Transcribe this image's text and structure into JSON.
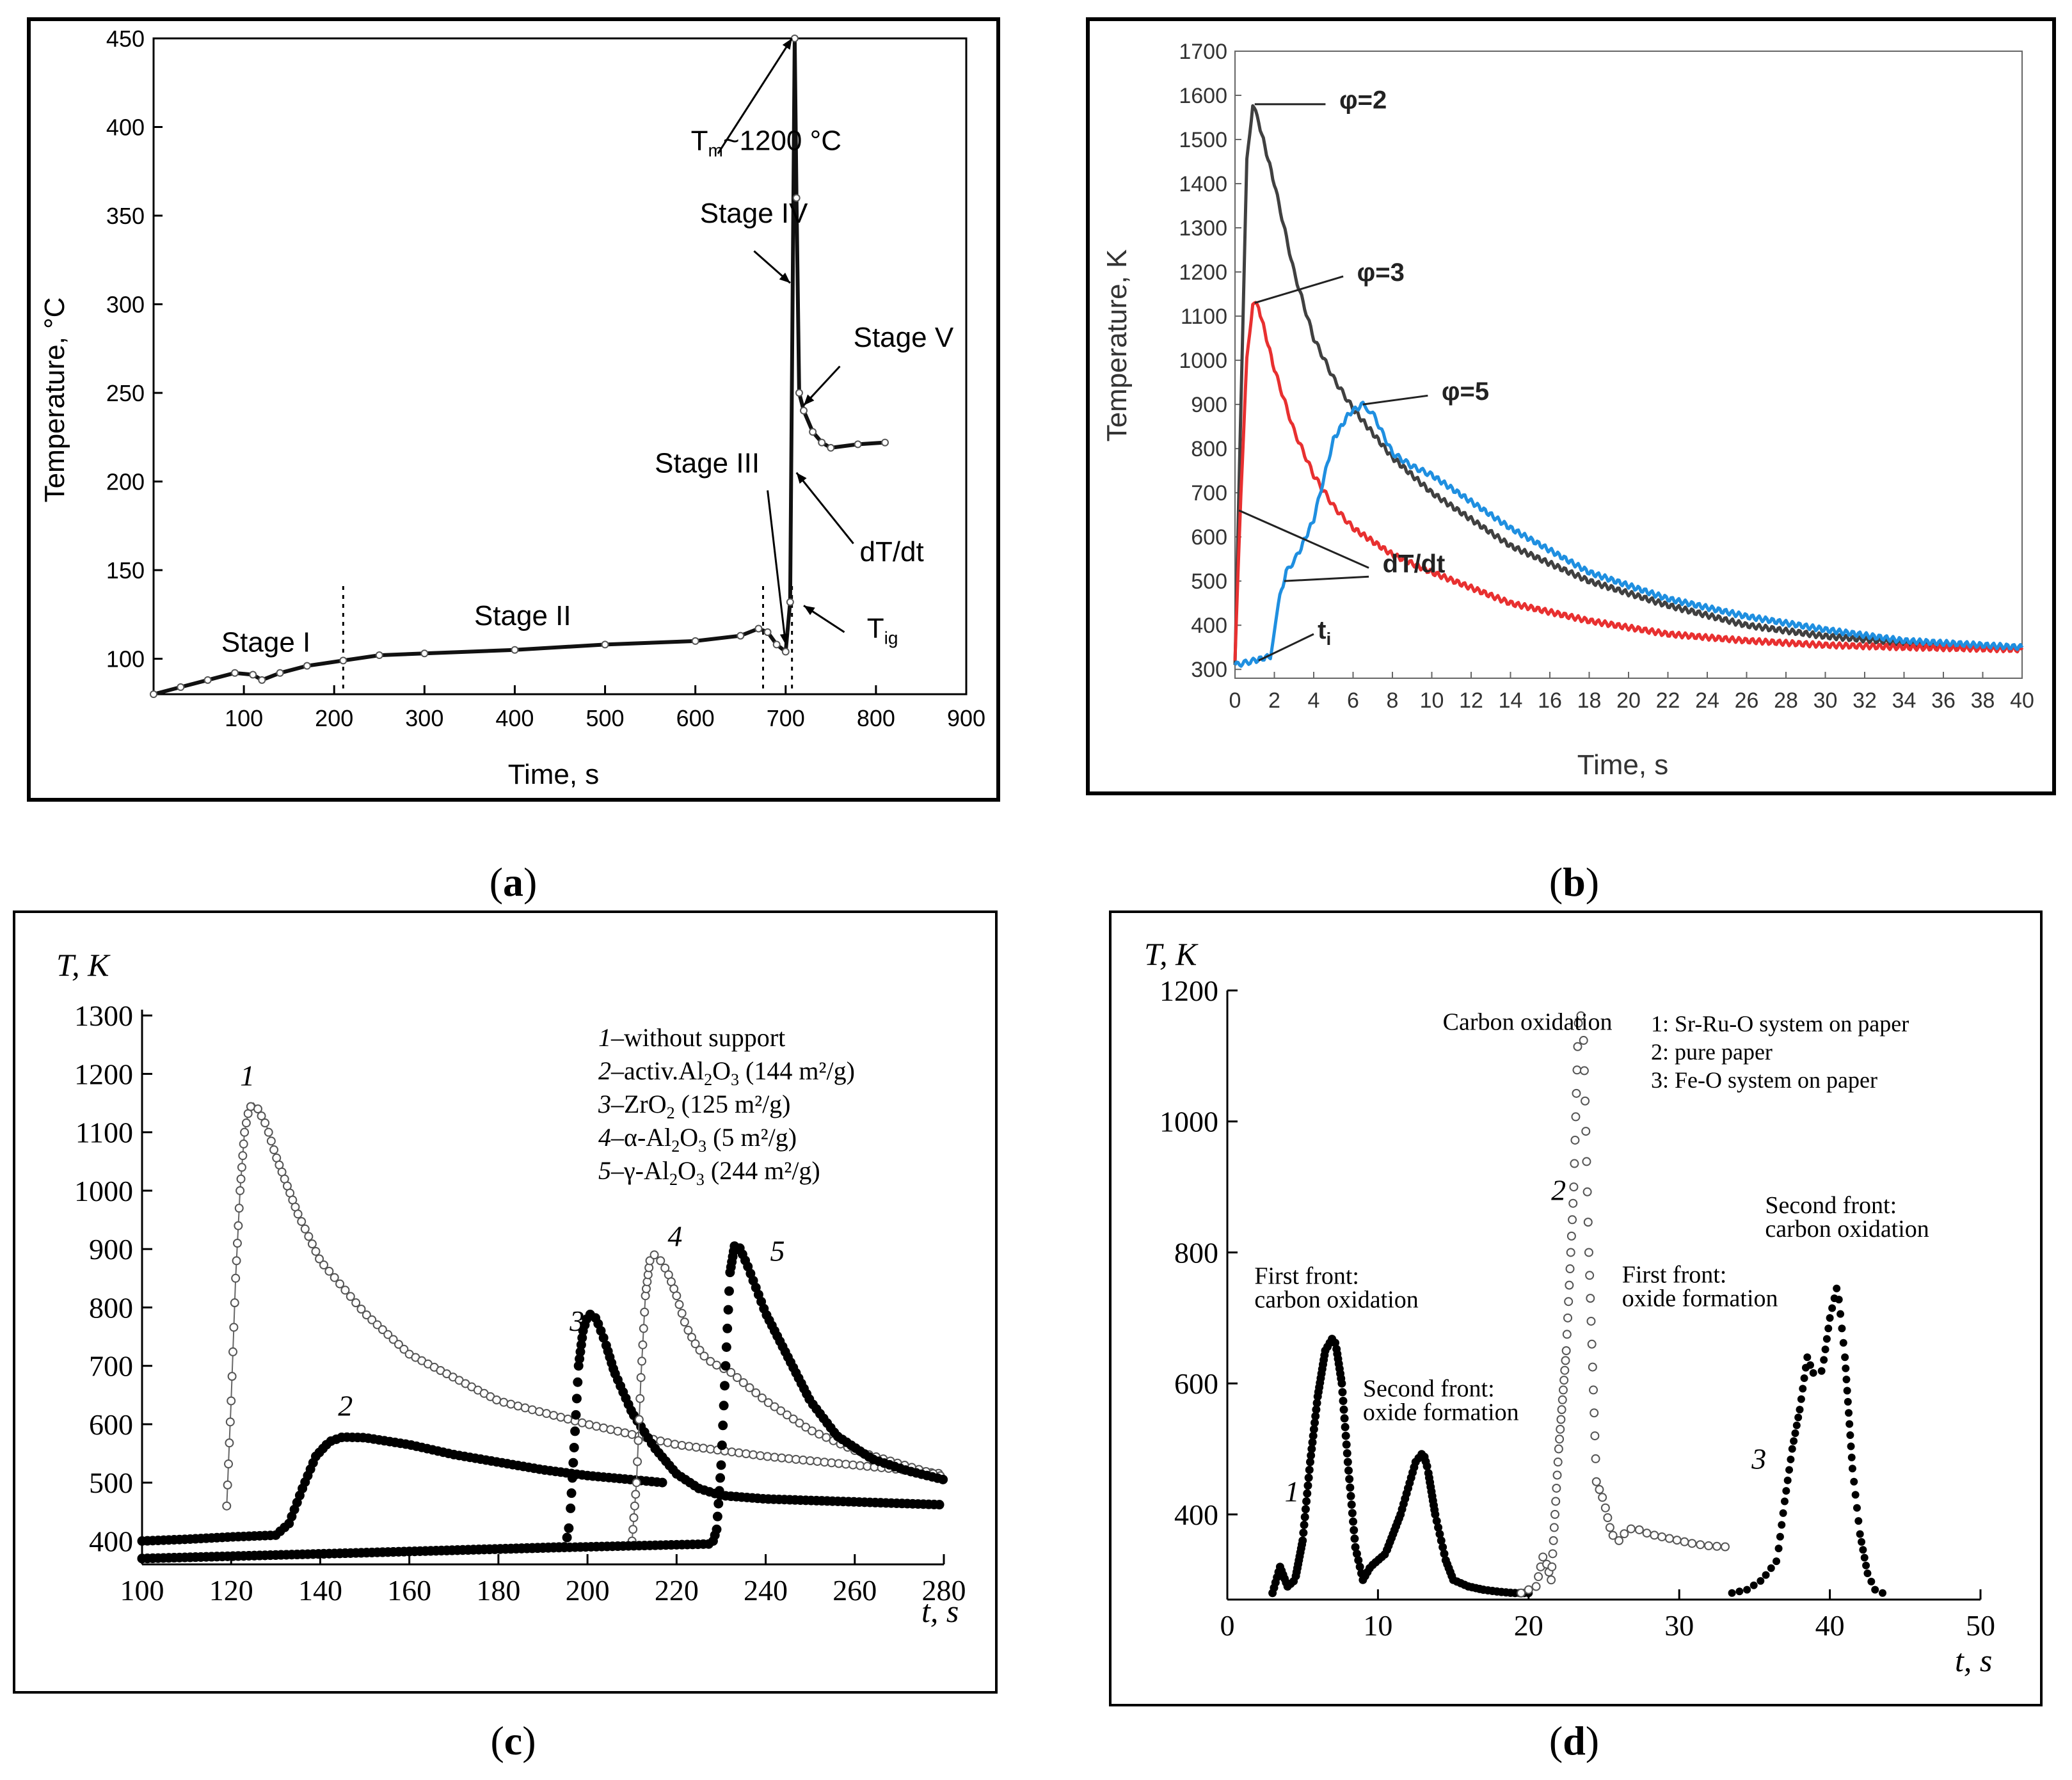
{
  "panels": {
    "a": {
      "caption": "a",
      "chart_data": {
        "type": "line",
        "xlabel": "Time, s",
        "ylabel": "Temperature, °C",
        "xlim": [
          0,
          900
        ],
        "ylim": [
          80,
          450
        ],
        "xticks": [
          100,
          200,
          300,
          400,
          500,
          600,
          700,
          800,
          900
        ],
        "yticks": [
          100,
          150,
          200,
          250,
          300,
          350,
          400,
          450
        ],
        "series": [
          {
            "name": "temperature",
            "x": [
              0,
              30,
              60,
              90,
              110,
              120,
              140,
              170,
              210,
              250,
              300,
              400,
              500,
              600,
              650,
              670,
              680,
              690,
              700,
              705,
              710,
              712,
              715,
              720,
              730,
              740,
              750,
              780,
              810
            ],
            "y": [
              80,
              84,
              88,
              92,
              91,
              88,
              92,
              96,
              99,
              102,
              103,
              105,
              108,
              110,
              113,
              117,
              115,
              108,
              104,
              132,
              450,
              360,
              250,
              240,
              228,
              222,
              219,
              221,
              222
            ]
          }
        ],
        "stage_boundaries": [
          210,
          675,
          707
        ],
        "annotations": [
          {
            "text": "Stage I",
            "x": 75,
            "y": 104
          },
          {
            "text": "Stage II",
            "x": 355,
            "y": 119
          },
          {
            "text": "Stage III",
            "x": 555,
            "y": 205
          },
          {
            "text": "Stage IV",
            "x": 605,
            "y": 346
          },
          {
            "text": "Stage V",
            "x": 775,
            "y": 276
          },
          {
            "text": "dT/dt",
            "x": 782,
            "y": 155
          },
          {
            "text": "T",
            "sub": "ig",
            "x": 790,
            "y": 112
          },
          {
            "text": "T",
            "sub": "m",
            "tail": "~1200 °C",
            "x": 595,
            "y": 387
          }
        ]
      }
    },
    "b": {
      "caption": "b",
      "chart_data": {
        "type": "line",
        "xlabel": "Time, s",
        "ylabel": "Temperature, K",
        "xlim": [
          0,
          40
        ],
        "ylim": [
          280,
          1700
        ],
        "xticks": [
          0,
          2,
          4,
          6,
          8,
          10,
          12,
          14,
          16,
          18,
          20,
          22,
          24,
          26,
          28,
          30,
          32,
          34,
          36,
          38,
          40
        ],
        "yticks": [
          300,
          400,
          500,
          600,
          700,
          800,
          900,
          1000,
          1100,
          1200,
          1300,
          1400,
          1500,
          1600,
          1700
        ],
        "series": [
          {
            "name": "φ=2",
            "color": "#404040",
            "x": [
              0,
              0.3,
              0.6,
              0.9,
              1.2,
              2,
              3,
              4,
              5,
              6,
              8,
              10,
              14,
              18,
              22,
              26,
              30,
              34,
              40
            ],
            "y": [
              310,
              900,
              1450,
              1580,
              1540,
              1400,
              1200,
              1050,
              960,
              890,
              780,
              700,
              580,
              500,
              445,
              400,
              375,
              360,
              350
            ]
          },
          {
            "name": "φ=3",
            "color": "#e83030",
            "x": [
              0,
              0.3,
              0.6,
              0.9,
              1.2,
              2,
              3,
              4,
              5,
              6,
              8,
              10,
              14,
              18,
              22,
              26,
              30,
              34,
              40
            ],
            "y": [
              320,
              700,
              1000,
              1130,
              1120,
              980,
              840,
              740,
              670,
              620,
              560,
              520,
              450,
              410,
              380,
              365,
              355,
              350,
              345
            ]
          },
          {
            "name": "φ=5",
            "color": "#1f8fe0",
            "x": [
              0,
              1,
              1.8,
              2.2,
              2.6,
              3.2,
              4,
              5,
              5.8,
              6.5,
              7,
              8,
              9,
              10,
              12,
              14,
              18,
              22,
              26,
              30,
              34,
              40
            ],
            "y": [
              310,
              320,
              330,
              450,
              520,
              560,
              640,
              820,
              880,
              900,
              880,
              790,
              760,
              740,
              680,
              620,
              520,
              460,
              420,
              390,
              365,
              350
            ]
          }
        ],
        "annotations": [
          {
            "text": "φ=2",
            "x": 5.3,
            "y": 1570
          },
          {
            "text": "φ=3",
            "x": 6.2,
            "y": 1180
          },
          {
            "text": "φ=5",
            "x": 10.5,
            "y": 910
          },
          {
            "text": "dT/dt",
            "x": 7.5,
            "y": 520
          },
          {
            "text": "t",
            "sub": "i",
            "x": 4.2,
            "y": 370
          }
        ]
      }
    },
    "c": {
      "caption": "c",
      "chart_data": {
        "type": "scatter",
        "ylabel": "T, K",
        "xlabel": "t, s",
        "xlim": [
          100,
          280
        ],
        "ylim": [
          360,
          1310
        ],
        "xticks": [
          100,
          120,
          140,
          160,
          180,
          200,
          220,
          240,
          260,
          280
        ],
        "yticks": [
          400,
          500,
          600,
          700,
          800,
          900,
          1000,
          1100,
          1200,
          1300
        ],
        "legend": [
          {
            "num": "1",
            "text": "without support"
          },
          {
            "num": "2",
            "text": "activ.Al",
            "sub": "2",
            "mid": "O",
            "sub2": "3",
            "tail": " (144 m²/g)"
          },
          {
            "num": "3",
            "text": "ZrO",
            "sub": "2",
            "tail": " (125 m²/g)"
          },
          {
            "num": "4",
            "text": "α-Al",
            "sub": "2",
            "mid": "O",
            "sub2": "3",
            "tail": " (5 m²/g)"
          },
          {
            "num": "5",
            "text": "γ-Al",
            "sub": "2",
            "mid": "O",
            "sub2": "3",
            "tail": " (244 m²/g)"
          }
        ],
        "series": [
          {
            "name": "1",
            "marker": "open",
            "x": [
              119,
              120,
              121,
              122,
              123,
              124,
              125,
              126,
              128,
              130,
              135,
              140,
              150,
              160,
              180,
              200,
              220,
              240,
              260,
              280
            ],
            "y": [
              460,
              640,
              850,
              1000,
              1100,
              1140,
              1150,
              1140,
              1110,
              1060,
              960,
              880,
              790,
              720,
              640,
              600,
              565,
              545,
              530,
              515
            ]
          },
          {
            "name": "2",
            "marker": "filled",
            "x": [
              100,
              110,
              120,
              130,
              133,
              136,
              139,
              142,
              145,
              150,
              160,
              170,
              180,
              190,
              200,
              210,
              217
            ],
            "y": [
              400,
              403,
              407,
              410,
              430,
              490,
              545,
              570,
              578,
              577,
              565,
              548,
              535,
              522,
              512,
              505,
              500
            ]
          },
          {
            "name": "3",
            "marker": "filled",
            "x": [
              100,
              150,
              195,
              196,
              197,
              198,
              199,
              200,
              201,
              202,
              204,
              206,
              210,
              215,
              220,
              225,
              230,
              240,
              260,
              280
            ],
            "y": [
              370,
              380,
              390,
              430,
              560,
              700,
              760,
              785,
              790,
              780,
              740,
              690,
              620,
              560,
              515,
              490,
              478,
              472,
              467,
              462
            ]
          },
          {
            "name": "4",
            "marker": "open",
            "x": [
              210,
              211,
              212,
              213,
              214,
              215,
              216,
              218,
              220,
              222,
              224,
              226,
              228,
              232,
              240,
              250,
              260,
              280
            ],
            "y": [
              400,
              500,
              680,
              820,
              880,
              890,
              885,
              860,
              820,
              770,
              740,
              718,
              705,
              690,
              640,
              590,
              555,
              510
            ]
          },
          {
            "name": "5",
            "marker": "filled",
            "x": [
              100,
              150,
              200,
              228,
              229,
              230,
              231,
              232,
              233,
              234,
              236,
              238,
              240,
              242,
              246,
              250,
              256,
              264,
              272,
              280
            ],
            "y": [
              370,
              380,
              390,
              395,
              420,
              530,
              700,
              860,
              905,
              905,
              870,
              830,
              790,
              760,
              700,
              640,
              580,
              540,
              520,
              505
            ]
          }
        ],
        "curve_labels": [
          {
            "text": "1",
            "x": 122,
            "y": 1180
          },
          {
            "text": "2",
            "x": 144,
            "y": 615
          },
          {
            "text": "3",
            "x": 196,
            "y": 760
          },
          {
            "text": "4",
            "x": 218,
            "y": 905
          },
          {
            "text": "5",
            "x": 241,
            "y": 880
          }
        ]
      }
    },
    "d": {
      "caption": "d",
      "chart_data": {
        "type": "scatter",
        "ylabel": "T, K",
        "xlabel": "t, s",
        "xlim": [
          0,
          50
        ],
        "ylim": [
          270,
          1200
        ],
        "xticks": [
          0,
          10,
          20,
          30,
          40,
          50
        ],
        "yticks": [
          400,
          600,
          800,
          1000,
          1200
        ],
        "legend": [
          "1: Sr-Ru-O system on paper",
          "2: pure paper",
          "3: Fe-O system on paper"
        ],
        "series": [
          {
            "name": "1",
            "marker": "filled",
            "x": [
              3,
              3.5,
              4,
              4.5,
              5,
              5.5,
              6,
              6.5,
              7,
              7.2,
              7.6,
              8,
              8.5,
              9,
              9.5,
              10,
              10.5,
              11,
              11.5,
              12,
              12.5,
              13,
              13.3,
              13.8,
              14.5,
              15,
              16,
              17,
              18,
              19,
              20
            ],
            "y": [
              280,
              320,
              290,
              300,
              360,
              480,
              580,
              650,
              670,
              660,
              600,
              480,
              350,
              300,
              320,
              330,
              340,
              370,
              400,
              440,
              480,
              495,
              470,
              400,
              330,
              300,
              290,
              285,
              282,
              280,
              280
            ]
          },
          {
            "name": "2",
            "marker": "open",
            "x": [
              19.5,
              20.5,
              21,
              21.5,
              22,
              22.5,
              23,
              23.3,
              23.6,
              24,
              24.5,
              25,
              25.5,
              26,
              26.5,
              27,
              28,
              29,
              30,
              31,
              32,
              33.5
            ],
            "y": [
              280,
              290,
              340,
              300,
              500,
              650,
              900,
              1150,
              1170,
              800,
              450,
              420,
              370,
              360,
              375,
              380,
              370,
              365,
              360,
              355,
              352,
              350
            ]
          },
          {
            "name": "3",
            "marker": "filled",
            "x": [
              33.5,
              34.5,
              35.5,
              36.5,
              37,
              37.5,
              38,
              38.5,
              39,
              39.5,
              40,
              40.5,
              41,
              41.5,
              42,
              42.5,
              43,
              43.5
            ],
            "y": [
              280,
              285,
              300,
              330,
              420,
              500,
              560,
              640,
              610,
              620,
              700,
              750,
              640,
              470,
              370,
              310,
              285,
              280
            ]
          }
        ],
        "annotations": [
          {
            "text": "Carbon oxidation",
            "x": 14.3,
            "y": 1140
          },
          {
            "text": "First front:",
            "x": 1.8,
            "y": 752
          },
          {
            "text": "carbon oxidation",
            "x": 1.8,
            "y": 716
          },
          {
            "text": "Second front:",
            "x": 9,
            "y": 580
          },
          {
            "text": "oxide formation",
            "x": 9,
            "y": 544
          },
          {
            "text": "First front:",
            "x": 26.2,
            "y": 754
          },
          {
            "text": "oxide formation",
            "x": 26.2,
            "y": 718
          },
          {
            "text": "Second front:",
            "x": 35.7,
            "y": 860
          },
          {
            "text": "carbon oxidation",
            "x": 35.7,
            "y": 824
          }
        ],
        "curve_labels": [
          {
            "text": "1",
            "x": 3.8,
            "y": 420
          },
          {
            "text": "2",
            "x": 21.5,
            "y": 880
          },
          {
            "text": "3",
            "x": 34.8,
            "y": 470
          }
        ]
      }
    }
  }
}
